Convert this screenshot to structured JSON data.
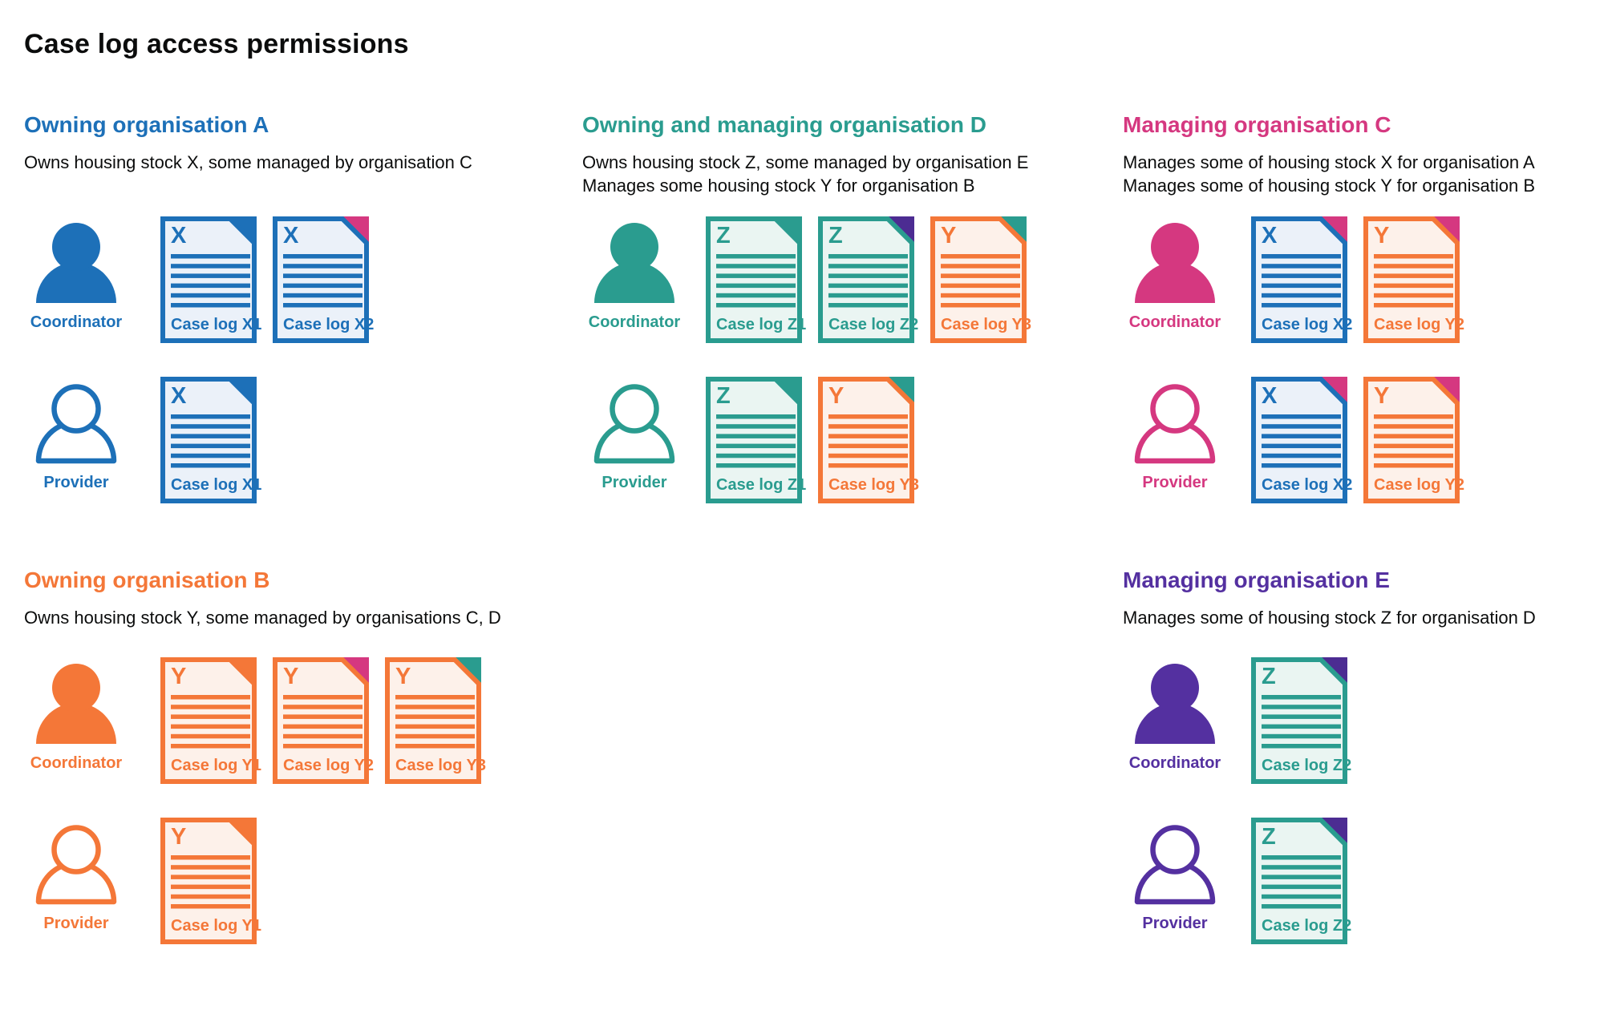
{
  "page_title": "Case log access permissions",
  "colors": {
    "blue": "#1d70b8",
    "blue_tint": "#ebf1f9",
    "teal": "#2a9c8f",
    "teal_tint": "#eaf5f2",
    "orange": "#f47738",
    "orange_tint": "#fdf1ea",
    "pink": "#d53880",
    "purple": "#5430a0",
    "purple_dark": "#4c2c92",
    "text": "#0b0c0c"
  },
  "sections": [
    {
      "id": "org-a",
      "color": "blue",
      "heading": "Owning organisation A",
      "description": [
        "Owns housing stock X, some managed by organisation C"
      ],
      "rows": [
        {
          "role": "Coordinator",
          "person": "filled",
          "docs": [
            {
              "letter": "X",
              "label": "Case log X1",
              "doc": "blue",
              "corner": "blue"
            },
            {
              "letter": "X",
              "label": "Case log X2",
              "doc": "blue",
              "corner": "pink"
            }
          ]
        },
        {
          "role": "Provider",
          "person": "outline",
          "docs": [
            {
              "letter": "X",
              "label": "Case log X1",
              "doc": "blue",
              "corner": "blue"
            }
          ]
        }
      ]
    },
    {
      "id": "org-d",
      "color": "teal",
      "heading": "Owning and managing organisation D",
      "description": [
        "Owns housing stock Z, some managed by organisation E",
        "Manages some housing stock Y for organisation B"
      ],
      "rows": [
        {
          "role": "Coordinator",
          "person": "filled",
          "docs": [
            {
              "letter": "Z",
              "label": "Case log Z1",
              "doc": "teal",
              "corner": "teal"
            },
            {
              "letter": "Z",
              "label": "Case log Z2",
              "doc": "teal",
              "corner": "purple_dark"
            },
            {
              "letter": "Y",
              "label": "Case log Y3",
              "doc": "orange",
              "corner": "teal"
            }
          ]
        },
        {
          "role": "Provider",
          "person": "outline",
          "docs": [
            {
              "letter": "Z",
              "label": "Case log Z1",
              "doc": "teal",
              "corner": "teal"
            },
            {
              "letter": "Y",
              "label": "Case log Y3",
              "doc": "orange",
              "corner": "teal"
            }
          ]
        }
      ]
    },
    {
      "id": "org-c",
      "color": "pink",
      "heading": "Managing organisation C",
      "description": [
        "Manages some of housing stock X for organisation A",
        "Manages some of housing stock Y for organisation B"
      ],
      "rows": [
        {
          "role": "Coordinator",
          "person": "filled",
          "docs": [
            {
              "letter": "X",
              "label": "Case log X2",
              "doc": "blue",
              "corner": "pink"
            },
            {
              "letter": "Y",
              "label": "Case log Y2",
              "doc": "orange",
              "corner": "pink"
            }
          ]
        },
        {
          "role": "Provider",
          "person": "outline",
          "docs": [
            {
              "letter": "X",
              "label": "Case log X2",
              "doc": "blue",
              "corner": "pink"
            },
            {
              "letter": "Y",
              "label": "Case log Y2",
              "doc": "orange",
              "corner": "pink"
            }
          ]
        }
      ]
    },
    {
      "id": "org-b",
      "color": "orange",
      "heading": "Owning organisation B",
      "description": [
        "Owns housing stock Y, some managed by organisations C, D"
      ],
      "rows": [
        {
          "role": "Coordinator",
          "person": "filled",
          "docs": [
            {
              "letter": "Y",
              "label": "Case log Y1",
              "doc": "orange",
              "corner": "orange"
            },
            {
              "letter": "Y",
              "label": "Case log Y2",
              "doc": "orange",
              "corner": "pink"
            },
            {
              "letter": "Y",
              "label": "Case log Y3",
              "doc": "orange",
              "corner": "teal"
            }
          ]
        },
        {
          "role": "Provider",
          "person": "outline",
          "docs": [
            {
              "letter": "Y",
              "label": "Case log Y1",
              "doc": "orange",
              "corner": "orange"
            }
          ]
        }
      ]
    },
    {
      "id": "org-e",
      "color": "purple",
      "heading": "Managing organisation E",
      "description": [
        "Manages some of housing stock Z for organisation D"
      ],
      "rows": [
        {
          "role": "Coordinator",
          "person": "filled",
          "docs": [
            {
              "letter": "Z",
              "label": "Case log Z2",
              "doc": "teal",
              "corner": "purple_dark"
            }
          ]
        },
        {
          "role": "Provider",
          "person": "outline",
          "docs": [
            {
              "letter": "Z",
              "label": "Case log Z2",
              "doc": "teal",
              "corner": "purple_dark"
            }
          ]
        }
      ]
    }
  ]
}
